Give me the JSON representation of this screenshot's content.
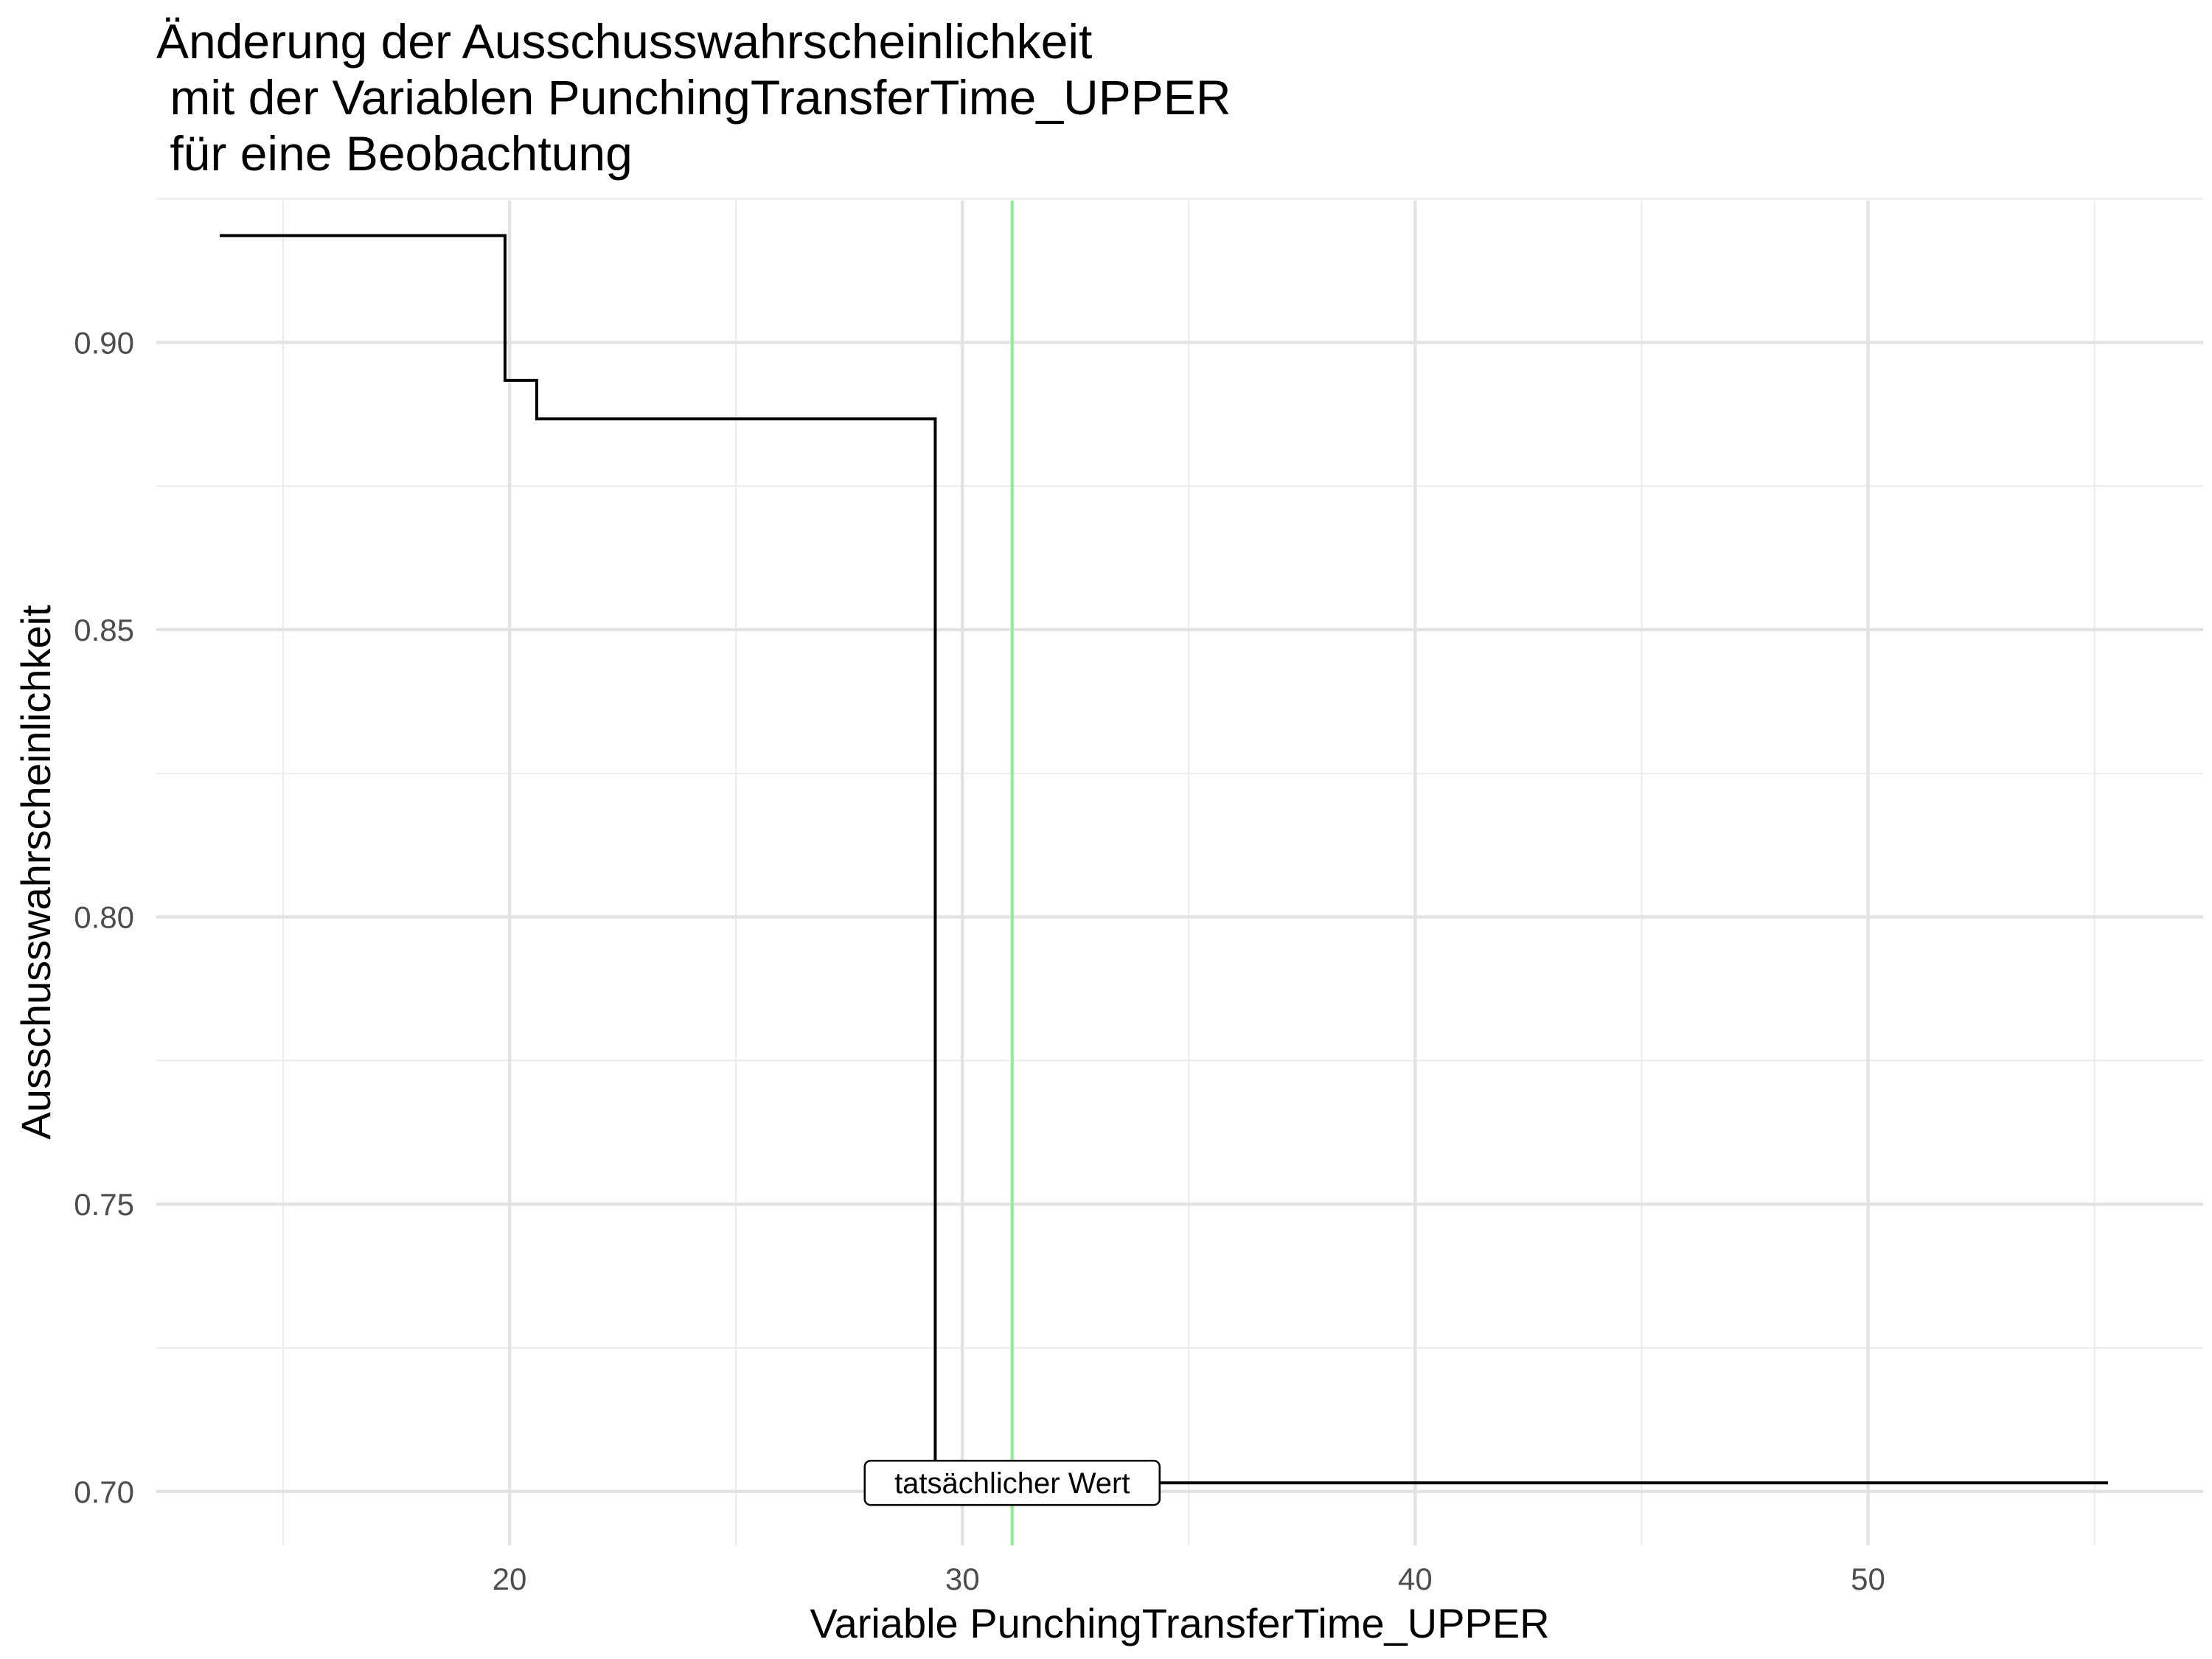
{
  "chart_data": {
    "type": "line",
    "step": true,
    "title_lines": [
      "Änderung der Ausschusswahrscheinlichkeit",
      " mit der Variablen PunchingTransferTime_UPPER",
      " für eine Beobachtung"
    ],
    "xlabel": "Variable PunchingTransferTime_UPPER",
    "ylabel": "Ausschusswahrscheinlichkeit",
    "xlim": [
      12.2,
      57.4
    ],
    "ylim": [
      0.6906,
      0.9247
    ],
    "x_ticks": [
      20,
      30,
      40,
      50
    ],
    "y_ticks": [
      0.7,
      0.75,
      0.8,
      0.85,
      0.9
    ],
    "x_tick_labels": [
      "20",
      "30",
      "40",
      "50"
    ],
    "y_tick_labels": [
      "0.70",
      "0.75",
      "0.80",
      "0.85",
      "0.90"
    ],
    "x_minor": [
      15,
      25,
      35,
      45,
      55
    ],
    "y_minor": [
      0.725,
      0.775,
      0.825,
      0.875,
      0.925
    ],
    "grid": true,
    "series": [
      {
        "x": [
          13.6,
          19.9,
          19.9,
          20.6,
          20.6,
          29.4,
          29.4,
          55.3
        ],
        "y": [
          0.9186,
          0.9186,
          0.8934,
          0.8934,
          0.8867,
          0.8867,
          0.7015,
          0.7015
        ],
        "color": "#000000"
      }
    ],
    "reference_line": {
      "x": 31.1,
      "color": "#90EE90",
      "label": "tatsächlicher Wert",
      "label_y": 0.7015
    }
  }
}
